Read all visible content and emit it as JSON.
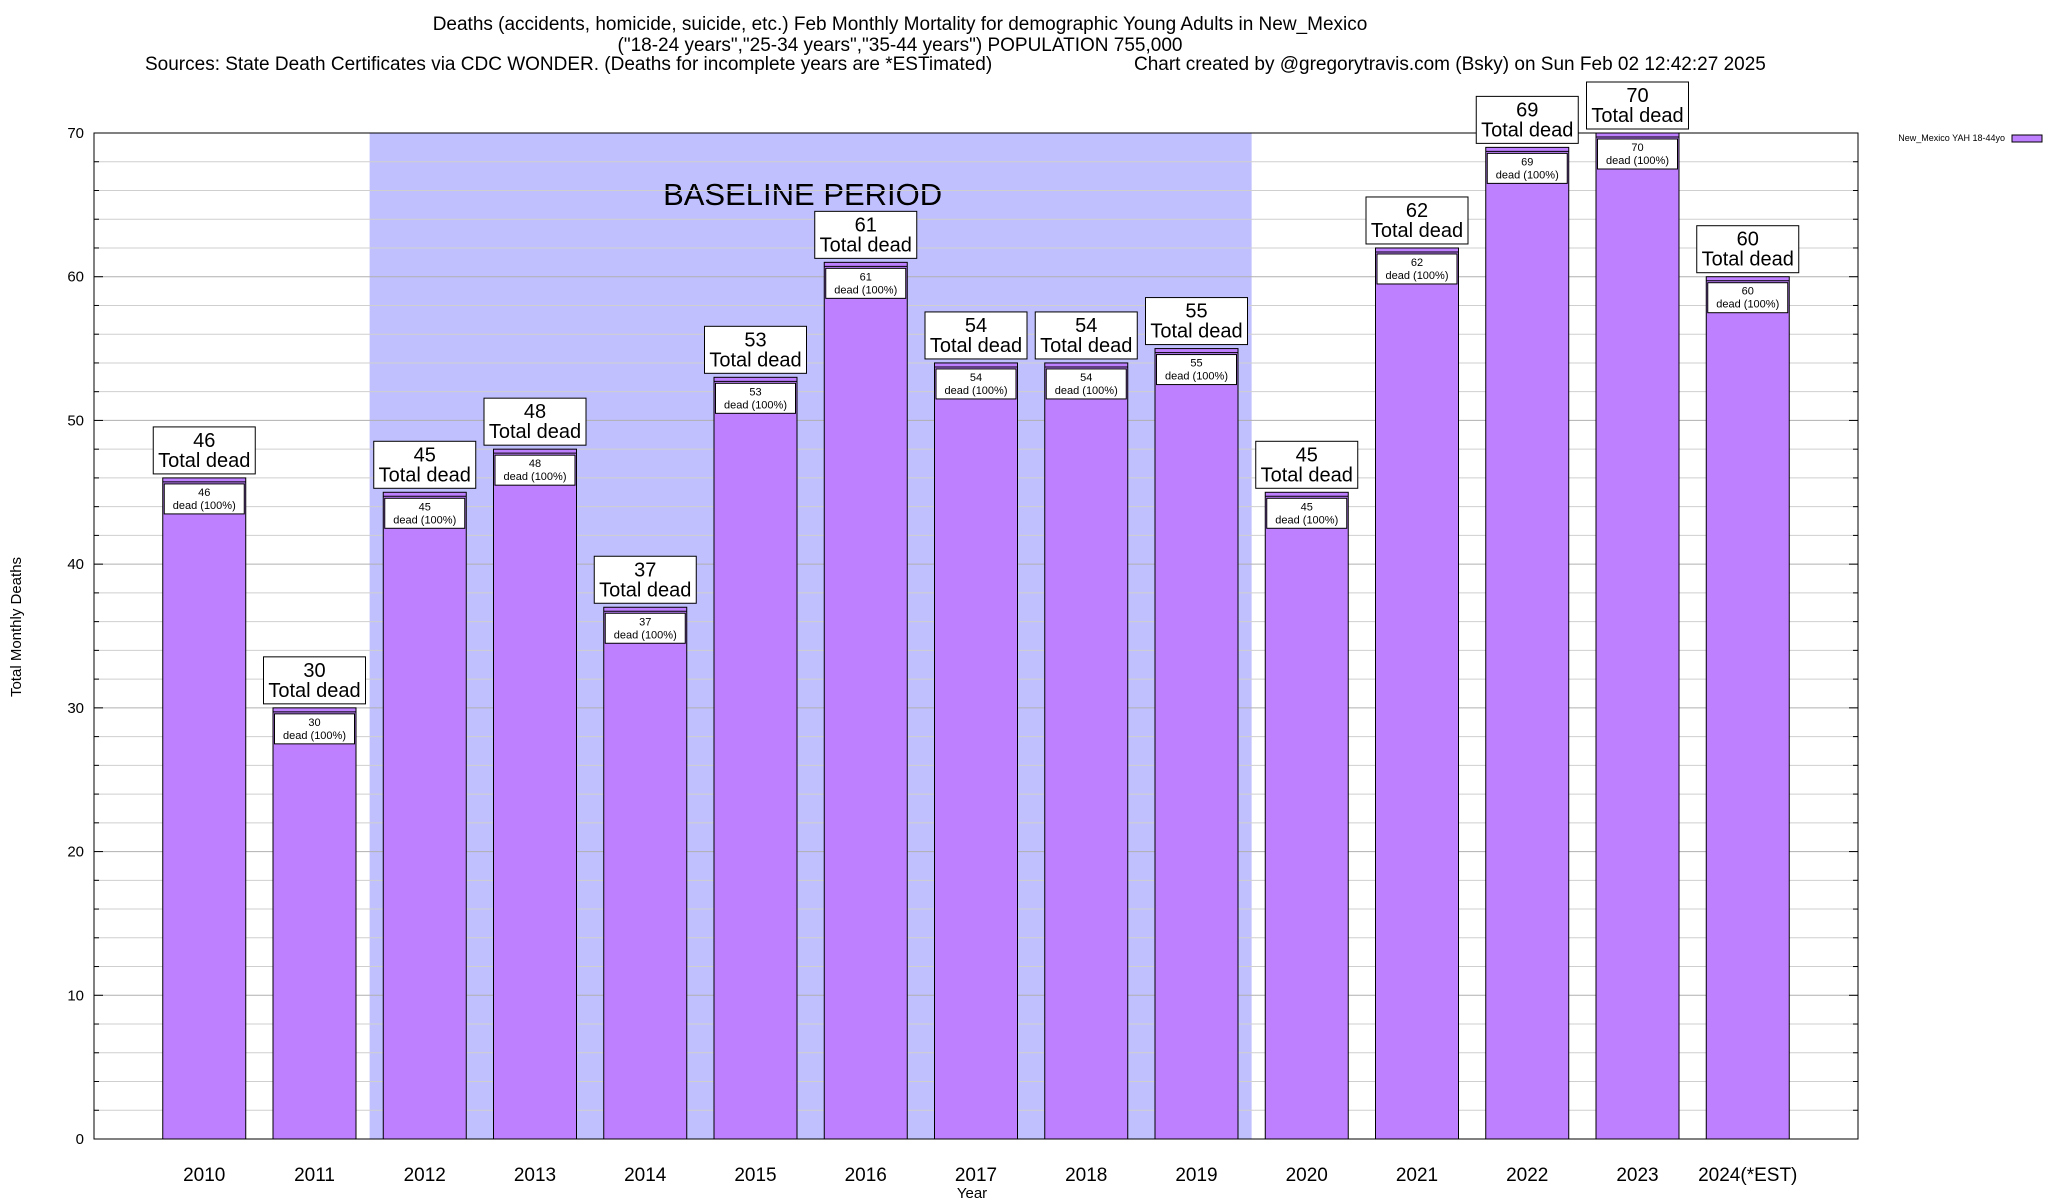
{
  "chart_data": {
    "type": "bar",
    "title": "Deaths (accidents, homicide, suicide, etc.) Feb Monthly Mortality for demographic Young Adults in New_Mexico",
    "subtitle": "(\"18-24 years\",\"25-34 years\",\"35-44 years\") POPULATION 755,000",
    "sources": "Sources: State Death Certificates via CDC WONDER. (Deaths for incomplete years are *ESTimated)",
    "credit": "Chart created by @gregorytravis.com (Bsky) on Sun Feb 02 12:42:27 2025",
    "xlabel": "Year",
    "ylabel": "Total Monthly Deaths",
    "ylim": [
      0,
      70
    ],
    "yticks": [
      0,
      10,
      20,
      30,
      40,
      50,
      60,
      70
    ],
    "grid": true,
    "legend_position": "top-right",
    "categories": [
      "2010",
      "2011",
      "2012",
      "2013",
      "2014",
      "2015",
      "2016",
      "2017",
      "2018",
      "2019",
      "2020",
      "2021",
      "2022",
      "2023",
      "2024(*EST)"
    ],
    "series": [
      {
        "name": "New_Mexico YAH 18-44yo",
        "color": "#bf80ff",
        "values": [
          46,
          30,
          45,
          48,
          37,
          53,
          61,
          54,
          54,
          55,
          45,
          62,
          69,
          70,
          60
        ]
      }
    ],
    "label_total_text": "Total dead",
    "label_inner_text": "dead (100%)",
    "baseline": {
      "label": "BASELINE PERIOD",
      "start": "2012",
      "end": "2019",
      "color": "#c0c0ff"
    }
  }
}
